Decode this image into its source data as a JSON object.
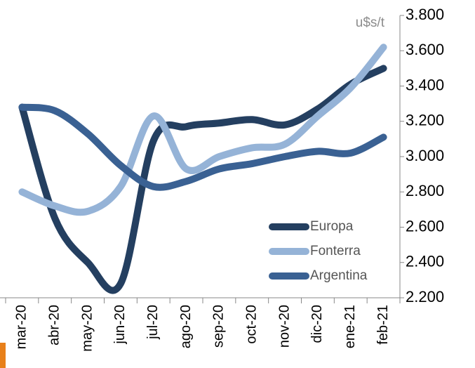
{
  "chart_data": {
    "type": "line",
    "unit_label": "u$s/t",
    "categories": [
      "mar-20",
      "abr-20",
      "may-20",
      "jun-20",
      "jul-20",
      "ago-20",
      "sep-20",
      "oct-20",
      "nov-20",
      "dic-20",
      "ene-21",
      "feb-21"
    ],
    "series": [
      {
        "name": "Europa",
        "color": "#243f60",
        "values": [
          3280,
          2650,
          2400,
          2280,
          3090,
          3170,
          3190,
          3210,
          3180,
          3270,
          3410,
          3500
        ]
      },
      {
        "name": "Fonterra",
        "color": "#95b3d7",
        "values": [
          2800,
          2720,
          2690,
          2830,
          3230,
          2930,
          3000,
          3050,
          3070,
          3230,
          3390,
          3620
        ]
      },
      {
        "name": "Argentina",
        "color": "#3a6193",
        "values": [
          3280,
          3260,
          3130,
          2950,
          2830,
          2860,
          2930,
          2960,
          3000,
          3030,
          3020,
          3110
        ]
      }
    ],
    "ylim": [
      2200,
      3800
    ],
    "yticks": [
      {
        "value": 2200,
        "label": "2.200"
      },
      {
        "value": 2400,
        "label": "2.400"
      },
      {
        "value": 2600,
        "label": "2.600"
      },
      {
        "value": 2800,
        "label": "2.800"
      },
      {
        "value": 3000,
        "label": "3.000"
      },
      {
        "value": 3200,
        "label": "3.200"
      },
      {
        "value": 3400,
        "label": "3.400"
      },
      {
        "value": 3600,
        "label": "3.600"
      },
      {
        "value": 3800,
        "label": "3.800"
      }
    ],
    "y_axis_side": "right",
    "grid": false,
    "legend": "lower right"
  }
}
